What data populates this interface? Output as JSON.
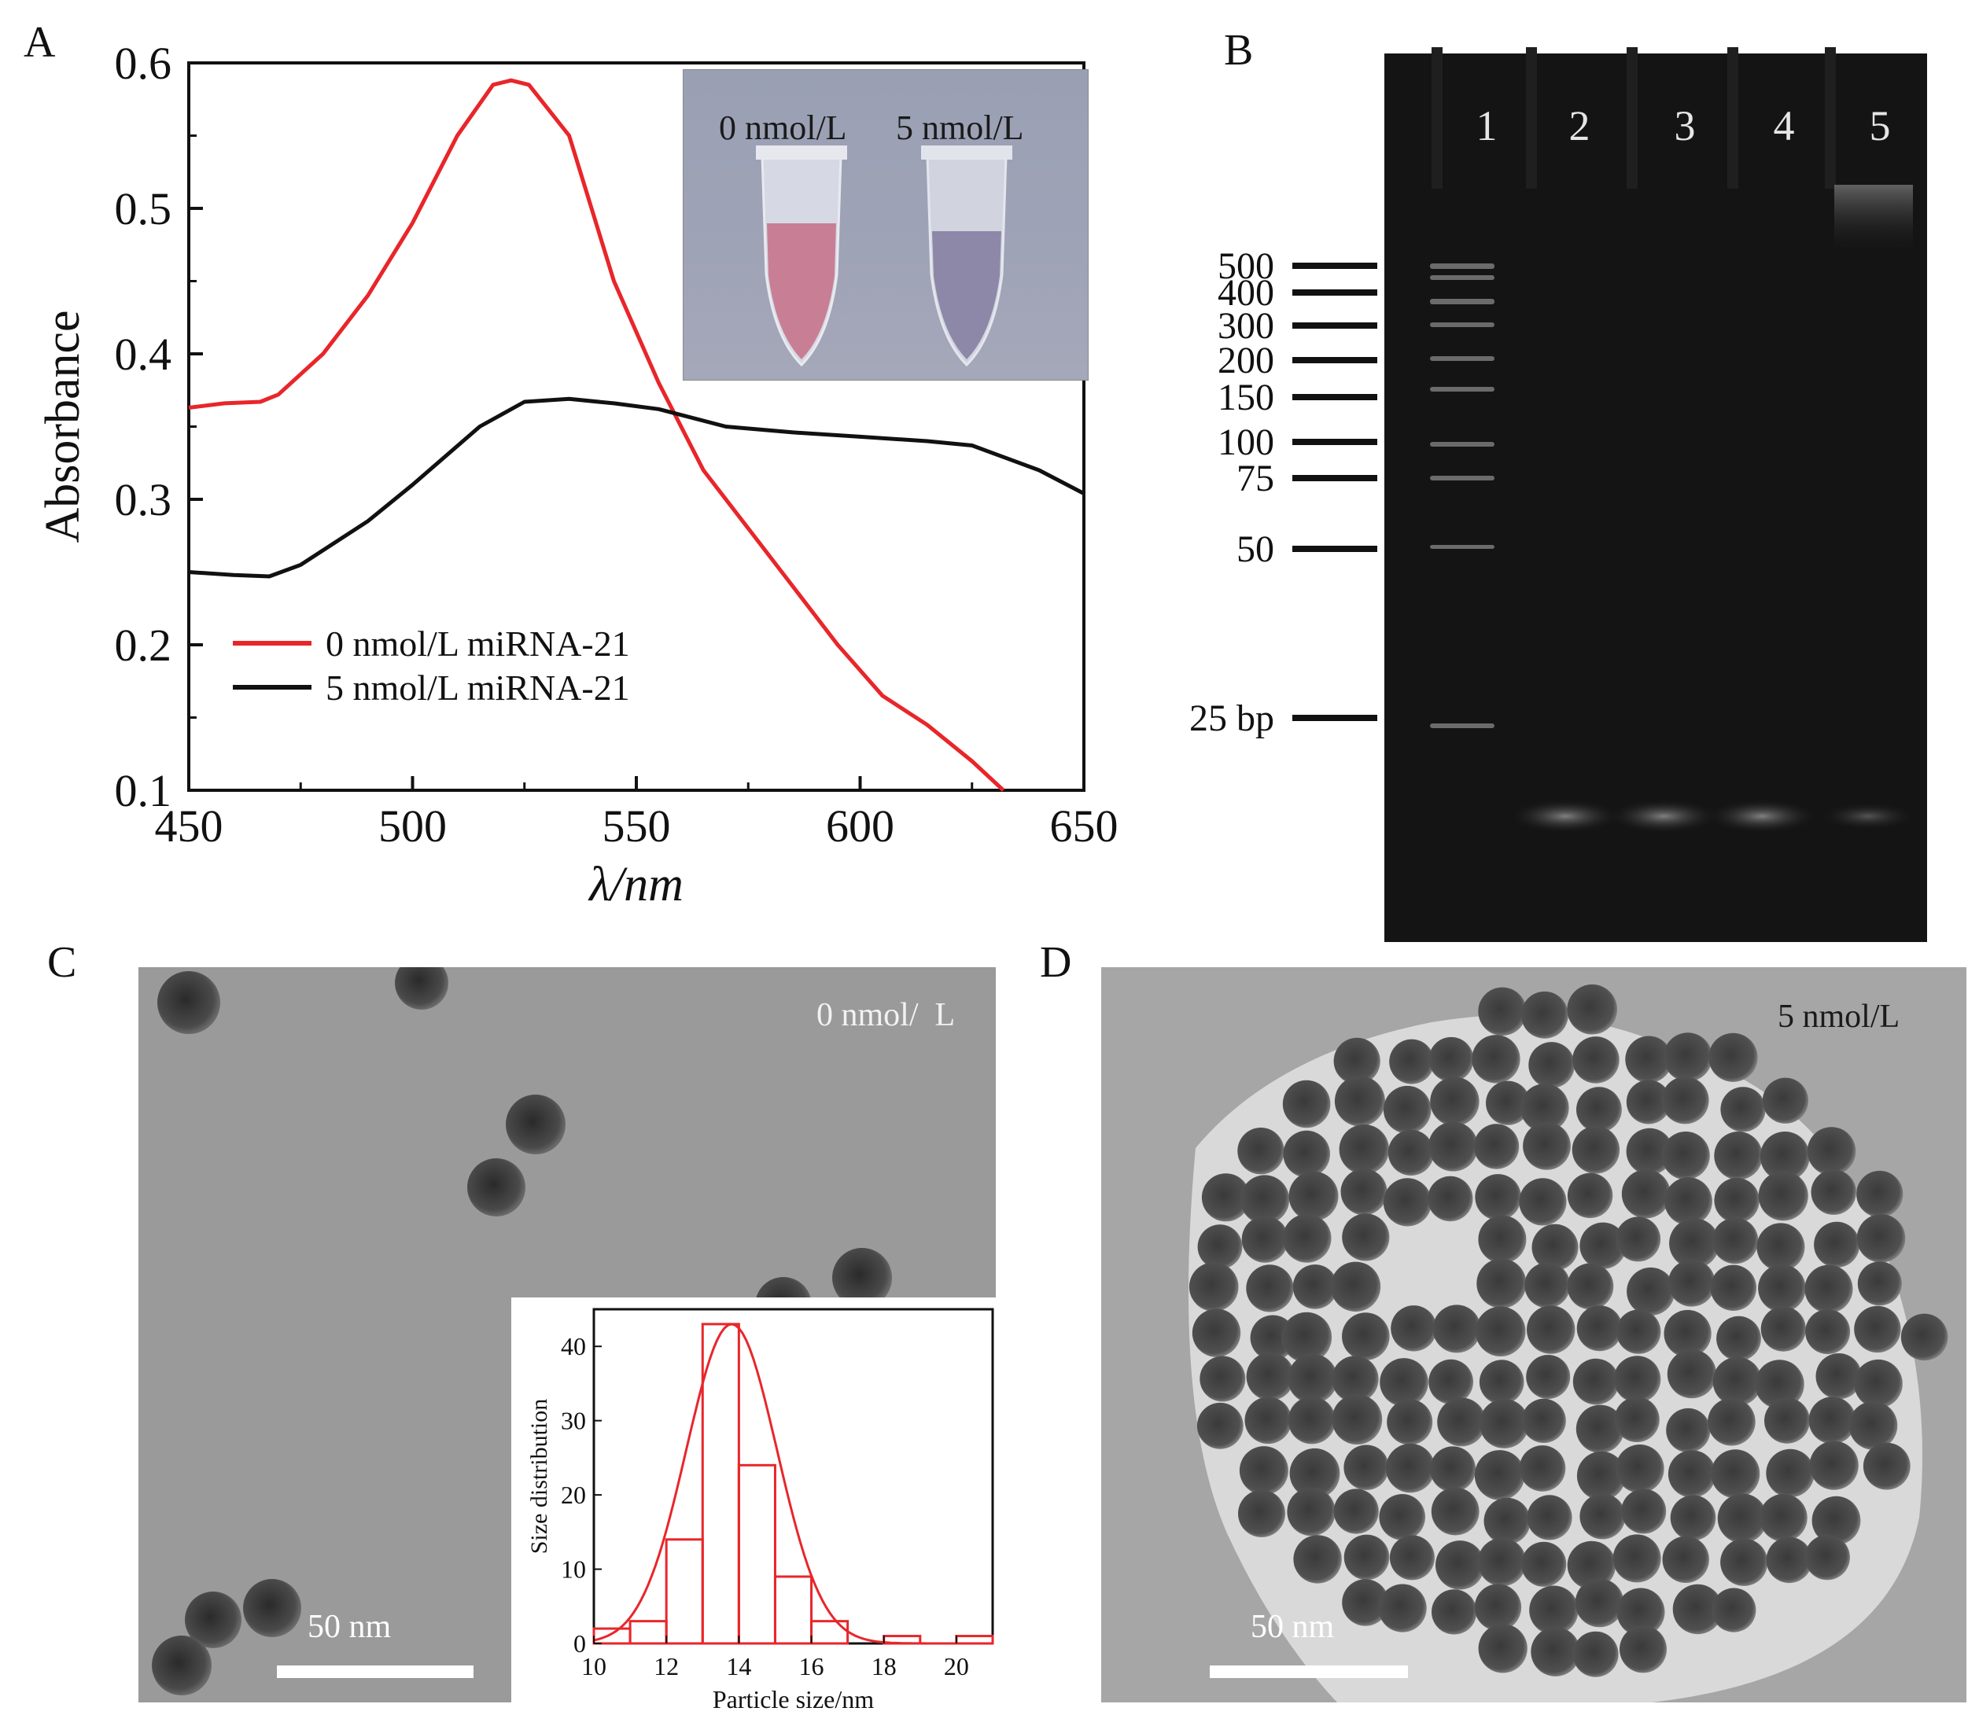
{
  "panels": {
    "A": {
      "label": "A",
      "chart_data": {
        "type": "line",
        "xlabel": "λ/nm",
        "ylabel": "Absorbance",
        "xlim": [
          450,
          650
        ],
        "ylim": [
          0.1,
          0.6
        ],
        "xticks": [
          450,
          500,
          550,
          600,
          650
        ],
        "yticks": [
          0.1,
          0.2,
          0.3,
          0.4,
          0.5,
          0.6
        ],
        "legend_position": "bottom-left",
        "series": [
          {
            "name": "0 nmol/L miRNA-21",
            "color": "#e8262a",
            "points": [
              [
                450,
                0.363
              ],
              [
                458,
                0.366
              ],
              [
                466,
                0.367
              ],
              [
                470,
                0.372
              ],
              [
                480,
                0.4
              ],
              [
                490,
                0.44
              ],
              [
                500,
                0.49
              ],
              [
                510,
                0.55
              ],
              [
                518,
                0.585
              ],
              [
                522,
                0.588
              ],
              [
                526,
                0.585
              ],
              [
                535,
                0.55
              ],
              [
                545,
                0.45
              ],
              [
                555,
                0.38
              ],
              [
                565,
                0.32
              ],
              [
                575,
                0.28
              ],
              [
                585,
                0.24
              ],
              [
                595,
                0.2
              ],
              [
                605,
                0.165
              ],
              [
                615,
                0.145
              ],
              [
                625,
                0.12
              ],
              [
                632,
                0.1
              ]
            ]
          },
          {
            "name": "5 nmol/L miRNA-21",
            "color": "#111111",
            "points": [
              [
                450,
                0.25
              ],
              [
                460,
                0.248
              ],
              [
                468,
                0.247
              ],
              [
                475,
                0.255
              ],
              [
                490,
                0.285
              ],
              [
                500,
                0.31
              ],
              [
                515,
                0.35
              ],
              [
                525,
                0.367
              ],
              [
                535,
                0.369
              ],
              [
                545,
                0.366
              ],
              [
                555,
                0.362
              ],
              [
                570,
                0.35
              ],
              [
                585,
                0.346
              ],
              [
                600,
                0.343
              ],
              [
                615,
                0.34
              ],
              [
                625,
                0.337
              ],
              [
                640,
                0.32
              ],
              [
                650,
                0.304
              ]
            ]
          }
        ]
      },
      "inset": {
        "tube1_label": "0 nmol/L",
        "tube2_label": "5 nmol/L"
      }
    },
    "B": {
      "label": "B",
      "lanes": [
        "1",
        "2",
        "3",
        "4",
        "5"
      ],
      "markers": [
        "500",
        "400",
        "300",
        "200",
        "150",
        "100",
        "75",
        "50",
        "25 bp"
      ]
    },
    "C": {
      "label": "C",
      "condition": "0 nmol/  L",
      "scalebar": "50 nm",
      "chart_data": {
        "type": "bar",
        "xlabel": "Particle size/nm",
        "ylabel": "Size distribution",
        "xlim": [
          10,
          21
        ],
        "ylim": [
          0,
          45
        ],
        "xticks": [
          10,
          12,
          14,
          16,
          18,
          20
        ],
        "yticks": [
          0,
          10,
          20,
          30,
          40
        ],
        "bins": [
          [
            10,
            11
          ],
          [
            11,
            12
          ],
          [
            12,
            13
          ],
          [
            13,
            14
          ],
          [
            14,
            15
          ],
          [
            15,
            16
          ],
          [
            16,
            17
          ],
          [
            17,
            18
          ],
          [
            18,
            19
          ],
          [
            19,
            20
          ],
          [
            20,
            21
          ]
        ],
        "values": [
          2,
          3,
          14,
          43,
          24,
          9,
          3,
          0,
          1,
          0,
          1
        ],
        "fit": {
          "type": "gaussian",
          "peak": 43,
          "mean": 13.8,
          "sigma": 1.25
        },
        "color": "#e8262a"
      }
    },
    "D": {
      "label": "D",
      "condition": "5 nmol/L",
      "scalebar": "50 nm"
    }
  }
}
